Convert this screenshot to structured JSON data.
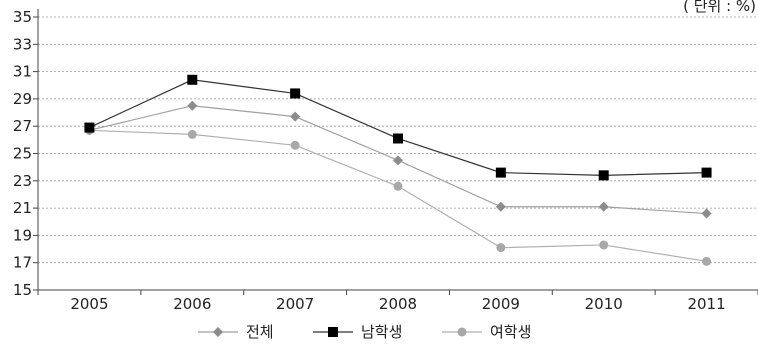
{
  "chart_data": {
    "type": "line",
    "title": "",
    "unit_note": "( 단위 : %)",
    "xlabel": "",
    "ylabel": "",
    "categories": [
      "2005",
      "2006",
      "2007",
      "2008",
      "2009",
      "2010",
      "2011"
    ],
    "yticks": [
      "15",
      "17",
      "19",
      "21",
      "23",
      "25",
      "27",
      "29",
      "31",
      "33",
      "35"
    ],
    "ylim": [
      15,
      35
    ],
    "grid": true,
    "legend_position": "bottom-center",
    "series": [
      {
        "name": "전체",
        "marker": "diamond",
        "color": "#8c8c8c",
        "line_color": "#a0a0a0",
        "values": [
          26.7,
          28.5,
          27.7,
          24.5,
          21.1,
          21.1,
          20.6
        ]
      },
      {
        "name": "남학생",
        "marker": "square",
        "color": "#000000",
        "line_color": "#333333",
        "values": [
          26.9,
          30.4,
          29.4,
          26.1,
          23.6,
          23.4,
          23.6
        ]
      },
      {
        "name": "여학생",
        "marker": "circle",
        "color": "#a8a8a8",
        "line_color": "#b0b0b0",
        "values": [
          26.7,
          26.4,
          25.6,
          22.6,
          18.1,
          18.3,
          17.1
        ]
      }
    ]
  }
}
